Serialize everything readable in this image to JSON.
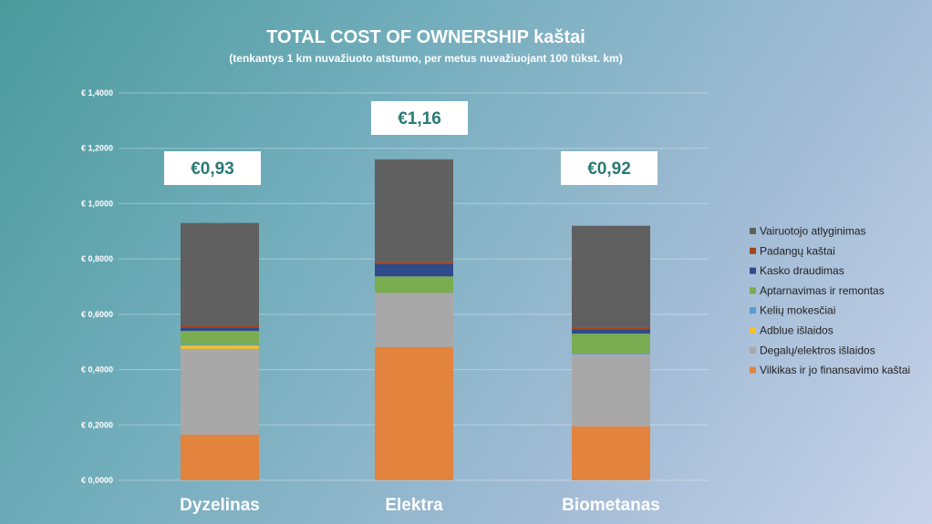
{
  "chart_data": {
    "type": "bar",
    "stacked": true,
    "title": "TOTAL COST OF OWNERSHIP kaštai",
    "subtitle": "(tenkantys 1 km nuvažiuoto atstumo, per metus nuvažiuojant 100 tūkst. km)",
    "categories": [
      "Dyzelinas",
      "Elektra",
      "Biometanas"
    ],
    "ylim": [
      0,
      1.4
    ],
    "yticks": [
      0,
      0.2,
      0.4,
      0.6,
      0.8,
      1.0,
      1.2,
      1.4
    ],
    "ytick_labels": [
      "€ 0,0000",
      "€ 0,2000",
      "€ 0,4000",
      "€ 0,6000",
      "€ 0,8000",
      "€ 1,0000",
      "€ 1,2000",
      "€ 1,4000"
    ],
    "grid": true,
    "legend_position": "right",
    "series": [
      {
        "name": "Vilkikas ir jo finansavimo kaštai",
        "color": "#e2843e",
        "values": [
          0.165,
          0.482,
          0.195
        ]
      },
      {
        "name": "Degalų/elektros išlaidos",
        "color": "#a8a8a8",
        "values": [
          0.31,
          0.195,
          0.26
        ]
      },
      {
        "name": "Adblue išlaidos",
        "color": "#f5c02a",
        "values": [
          0.012,
          0.0,
          0.0
        ]
      },
      {
        "name": "Kelių mokesčiai",
        "color": "#5a9bd5",
        "values": [
          0.003,
          0.0,
          0.003
        ]
      },
      {
        "name": "Aptarnavimas ir remontas",
        "color": "#7aac52",
        "values": [
          0.05,
          0.06,
          0.072
        ]
      },
      {
        "name": "Kasko draudimas",
        "color": "#2e4a8a",
        "values": [
          0.012,
          0.045,
          0.015
        ]
      },
      {
        "name": "Padangų kaštai",
        "color": "#a3461f",
        "values": [
          0.008,
          0.008,
          0.008
        ]
      },
      {
        "name": "Vairuotojo atlyginimas",
        "color": "#606060",
        "values": [
          0.37,
          0.37,
          0.367
        ]
      }
    ],
    "legend_order": [
      "Vairuotojo atlyginimas",
      "Padangų kaštai",
      "Kasko draudimas",
      "Aptarnavimas ir remontas",
      "Kelių mokesčiai",
      "Adblue išlaidos",
      "Degalų/elektros išlaidos",
      "Vilkikas ir jo finansavimo kaštai"
    ],
    "total_labels": [
      "€0,93",
      "€1,16",
      "€0,92"
    ]
  }
}
